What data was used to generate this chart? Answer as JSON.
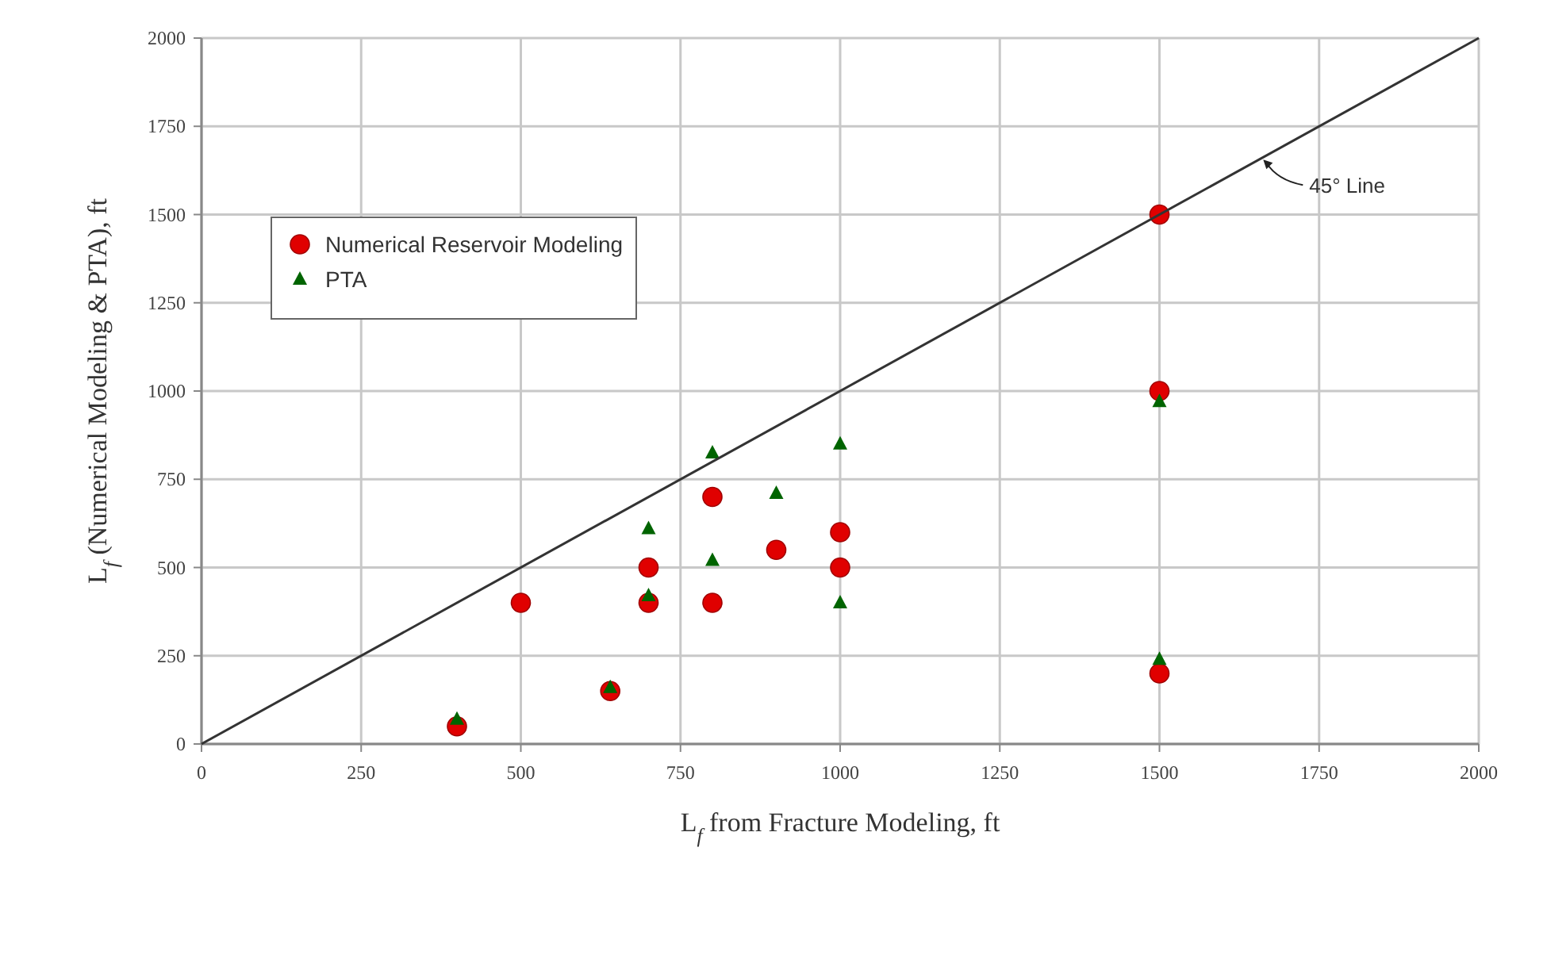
{
  "chart_data": {
    "type": "scatter",
    "xlabel": "L$_{f}$ from Fracture Modeling, ft",
    "ylabel": "L$_{f}$ (Numerical Modeling & PTA), ft",
    "xlim": [
      0,
      2000
    ],
    "ylim": [
      0,
      2000
    ],
    "xticks": [
      0,
      250,
      500,
      750,
      1000,
      1250,
      1500,
      1750,
      2000
    ],
    "yticks": [
      0,
      250,
      500,
      750,
      1000,
      1250,
      1500,
      1750,
      2000
    ],
    "grid": true,
    "legend": "top left",
    "series": [
      {
        "name": "Numerical Reservoir Modeling",
        "color": "#e00000",
        "marker": "circle",
        "x": [
          400,
          500,
          640,
          700,
          700,
          800,
          800,
          900,
          1000,
          1000,
          1500,
          1500,
          1500
        ],
        "values": [
          50,
          400,
          150,
          500,
          400,
          700,
          400,
          550,
          600,
          500,
          1500,
          1000,
          200
        ]
      },
      {
        "name": "PTA",
        "color": "#006400",
        "marker": "triangle",
        "x": [
          400,
          640,
          700,
          700,
          800,
          800,
          900,
          1000,
          1000,
          1500,
          1500
        ],
        "values": [
          70,
          160,
          610,
          420,
          825,
          520,
          710,
          850,
          400,
          970,
          240
        ]
      },
      {
        "name": "45° Line",
        "type": "line",
        "color": "#333333",
        "marker": "none",
        "x": [
          0,
          2000
        ],
        "values": [
          0,
          2000
        ]
      }
    ]
  }
}
